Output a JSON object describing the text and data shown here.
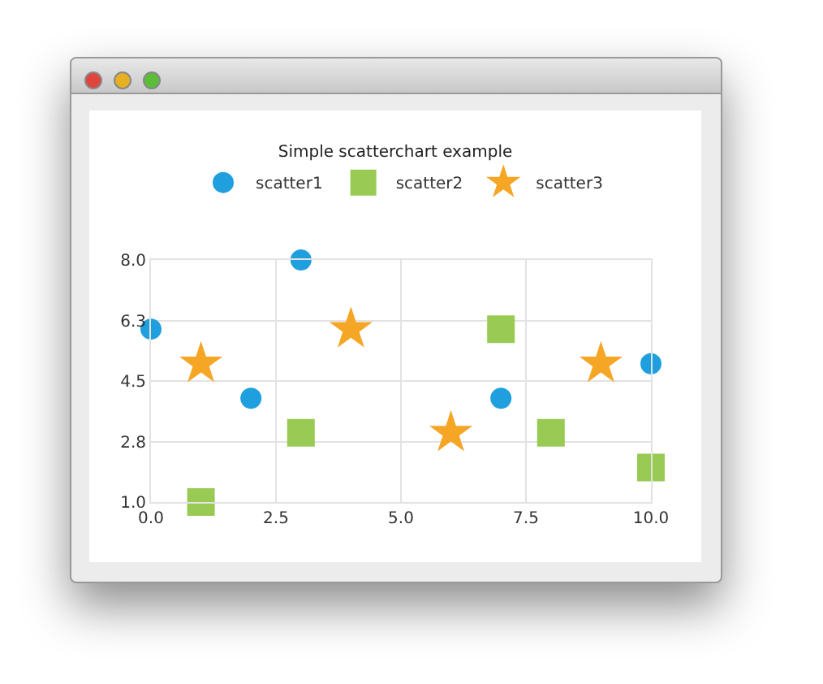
{
  "chart_data": {
    "type": "scatter",
    "title": "Simple scatterchart example",
    "xlim": [
      0,
      10
    ],
    "xticks": [
      {
        "value": 0,
        "label": "0.0"
      },
      2.5,
      {
        "value": 5,
        "label": "5.0"
      },
      7.5,
      {
        "value": 10,
        "label": "10.0"
      }
    ],
    "ylim": [
      1,
      8
    ],
    "yticks": [
      {
        "value": 1,
        "label": "1.0"
      },
      {
        "value": 2.75,
        "label": "2.8"
      },
      4.5,
      {
        "value": 6.25,
        "label": "6.3"
      },
      {
        "value": 8,
        "label": "8.0"
      }
    ],
    "grid": true,
    "legend": "top",
    "series": [
      {
        "name": "scatter1",
        "color": "#209fdf",
        "marker": "circle",
        "x": [
          0,
          2,
          3,
          7,
          10
        ],
        "values": [
          6,
          4,
          8,
          4,
          5
        ]
      },
      {
        "name": "scatter2",
        "color": "#99ca53",
        "marker": "square",
        "x": [
          1,
          3,
          7,
          8,
          10
        ],
        "values": [
          1,
          3,
          6,
          3,
          2
        ]
      },
      {
        "name": "scatter3",
        "color": "#f6a625",
        "marker": "star",
        "x": [
          1,
          4,
          6,
          9
        ],
        "values": [
          5,
          6,
          3,
          5
        ]
      }
    ]
  }
}
